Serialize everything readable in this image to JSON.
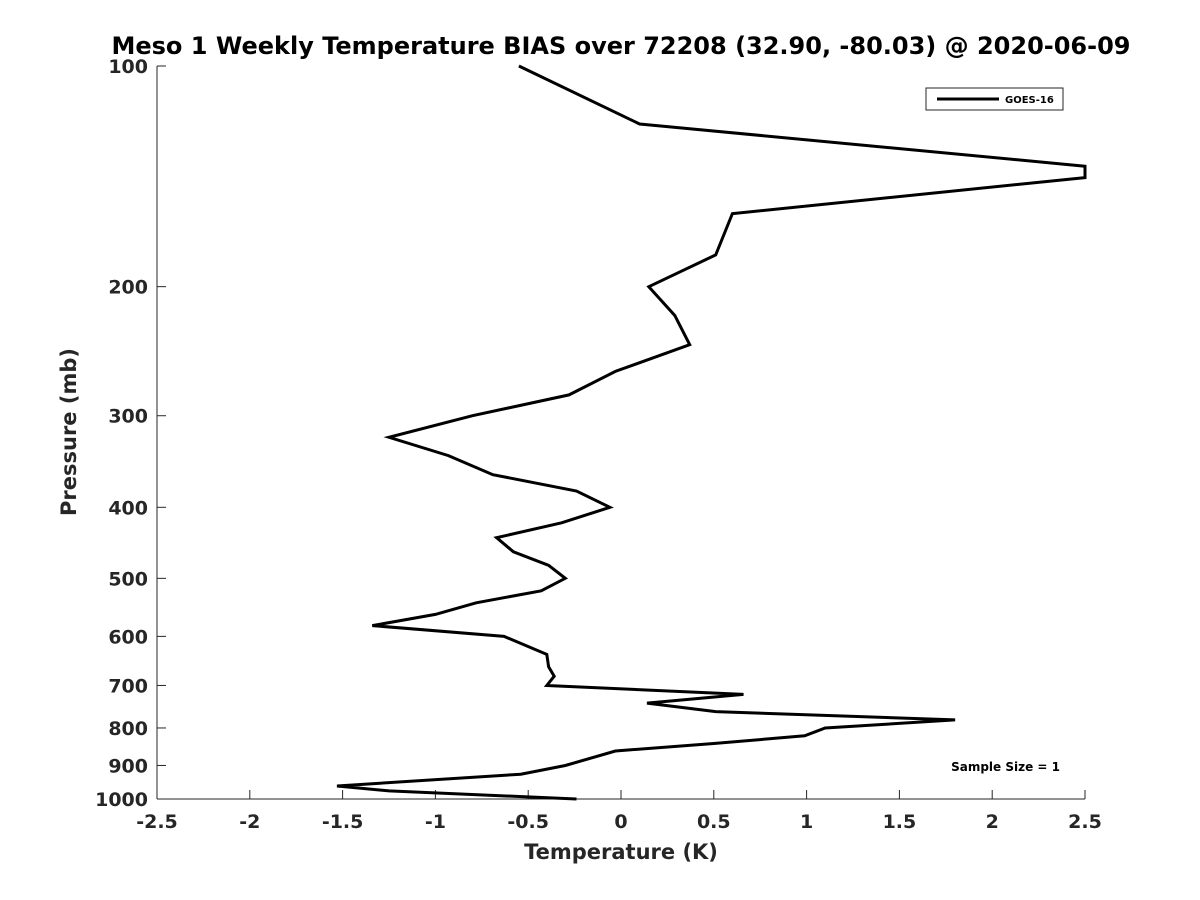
{
  "chart_data": {
    "type": "line",
    "title": "Meso 1 Weekly Temperature BIAS over 72208 (32.90, -80.03) @ 2020-06-09",
    "xlabel": "Temperature (K)",
    "ylabel": "Pressure (mb)",
    "xlim": [
      -2.5,
      2.5
    ],
    "ylim": [
      100,
      1000
    ],
    "y_scale": "log",
    "y_reversed": true,
    "x_ticks": [
      "-2.5",
      "-2",
      "-1.5",
      "-1",
      "-0.5",
      "0",
      "0.5",
      "1",
      "1.5",
      "2",
      "2.5"
    ],
    "x_tick_values": [
      -2.5,
      -2,
      -1.5,
      -1,
      -0.5,
      0,
      0.5,
      1,
      1.5,
      2,
      2.5
    ],
    "y_ticks": [
      "100",
      "200",
      "300",
      "400",
      "500",
      "600",
      "700",
      "800",
      "900",
      "1000"
    ],
    "y_tick_values": [
      100,
      200,
      300,
      400,
      500,
      600,
      700,
      800,
      900,
      1000
    ],
    "grid": false,
    "legend": {
      "position": "top-right",
      "entries": [
        "GOES-16"
      ]
    },
    "annotation": "Sample Size = 1",
    "series": [
      {
        "name": "GOES-16",
        "color": "#000000",
        "points": [
          {
            "x": -0.55,
            "pressure": 100
          },
          {
            "x": 0.1,
            "pressure": 120
          },
          {
            "x": 2.5,
            "pressure": 137
          },
          {
            "x": 2.5,
            "pressure": 142
          },
          {
            "x": 0.6,
            "pressure": 159
          },
          {
            "x": 0.51,
            "pressure": 181
          },
          {
            "x": 0.15,
            "pressure": 200
          },
          {
            "x": 0.29,
            "pressure": 219
          },
          {
            "x": 0.37,
            "pressure": 240
          },
          {
            "x": -0.03,
            "pressure": 261
          },
          {
            "x": -0.28,
            "pressure": 281
          },
          {
            "x": -0.8,
            "pressure": 300
          },
          {
            "x": -1.25,
            "pressure": 321
          },
          {
            "x": -0.93,
            "pressure": 340
          },
          {
            "x": -0.69,
            "pressure": 361
          },
          {
            "x": -0.24,
            "pressure": 380
          },
          {
            "x": -0.06,
            "pressure": 400
          },
          {
            "x": -0.32,
            "pressure": 420
          },
          {
            "x": -0.67,
            "pressure": 440
          },
          {
            "x": -0.58,
            "pressure": 460
          },
          {
            "x": -0.39,
            "pressure": 480
          },
          {
            "x": -0.3,
            "pressure": 500
          },
          {
            "x": -0.43,
            "pressure": 520
          },
          {
            "x": -0.78,
            "pressure": 540
          },
          {
            "x": -1.0,
            "pressure": 560
          },
          {
            "x": -1.34,
            "pressure": 580
          },
          {
            "x": -0.63,
            "pressure": 600
          },
          {
            "x": -0.4,
            "pressure": 635
          },
          {
            "x": -0.39,
            "pressure": 660
          },
          {
            "x": -0.36,
            "pressure": 680
          },
          {
            "x": -0.4,
            "pressure": 700
          },
          {
            "x": 0.66,
            "pressure": 720
          },
          {
            "x": 0.14,
            "pressure": 740
          },
          {
            "x": 0.51,
            "pressure": 760
          },
          {
            "x": 1.8,
            "pressure": 780
          },
          {
            "x": 1.1,
            "pressure": 800
          },
          {
            "x": 0.99,
            "pressure": 820
          },
          {
            "x": 0.5,
            "pressure": 840
          },
          {
            "x": -0.03,
            "pressure": 860
          },
          {
            "x": -0.3,
            "pressure": 900
          },
          {
            "x": -0.54,
            "pressure": 925
          },
          {
            "x": -1.53,
            "pressure": 960
          },
          {
            "x": -1.25,
            "pressure": 975
          },
          {
            "x": -0.24,
            "pressure": 1000
          }
        ]
      }
    ]
  }
}
